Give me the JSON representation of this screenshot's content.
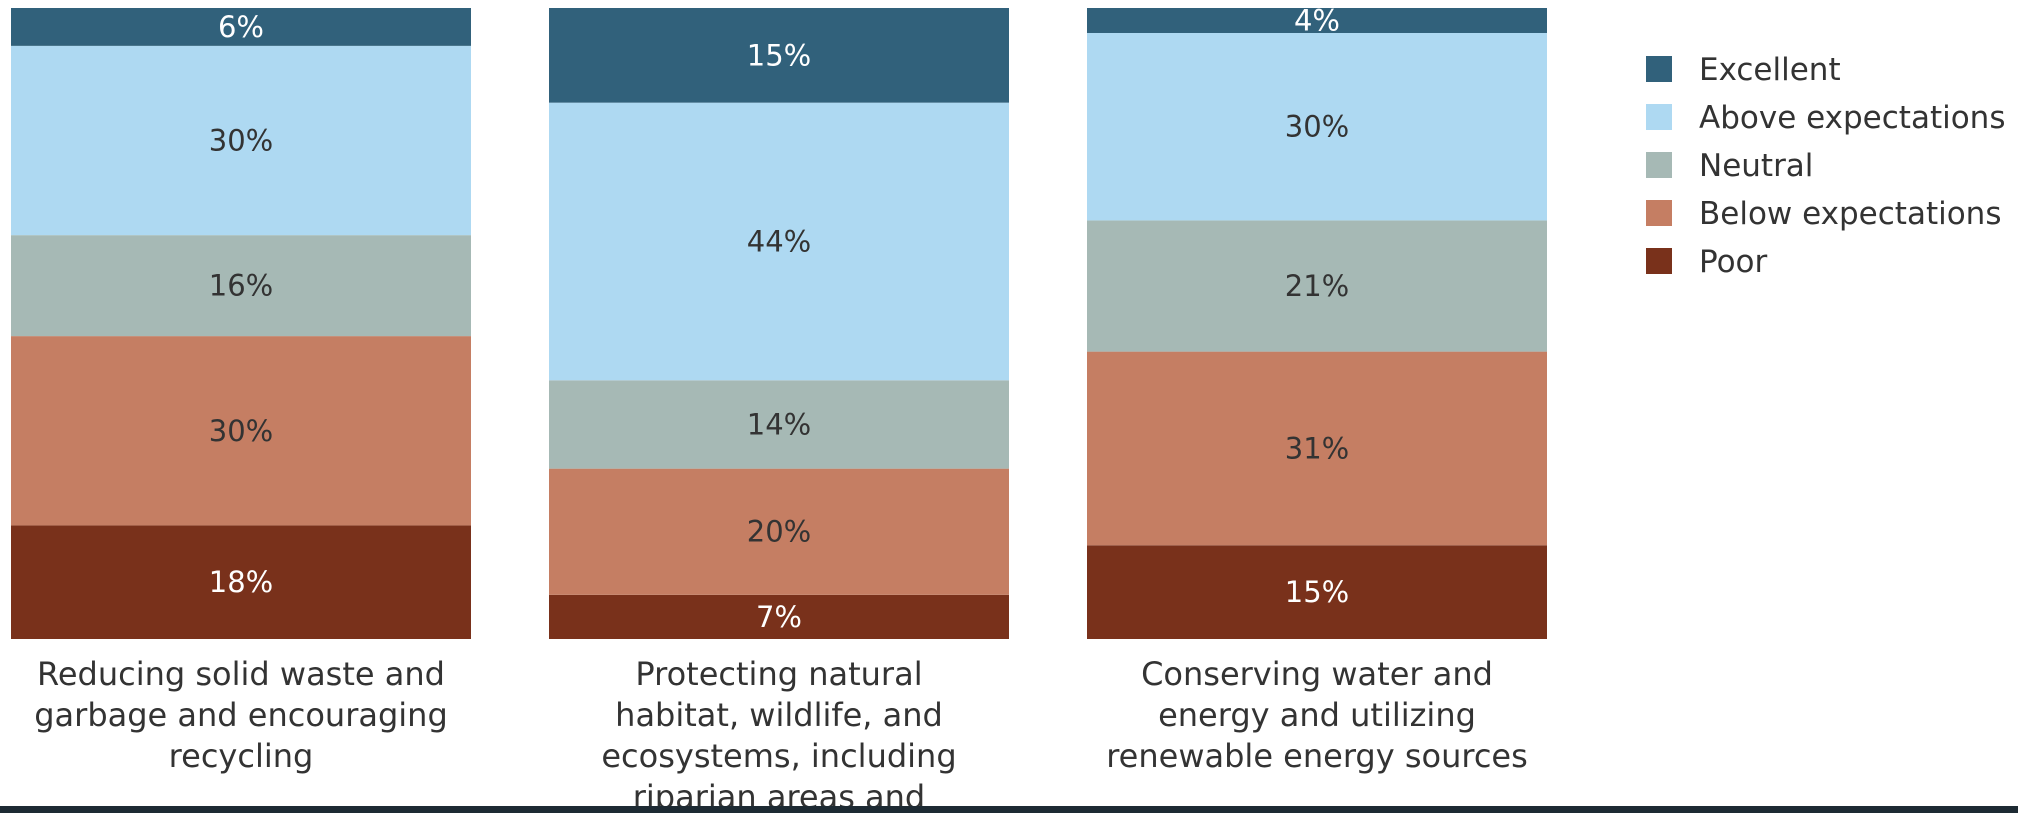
{
  "chart_data": {
    "type": "bar",
    "stacked": true,
    "orientation": "vertical",
    "categories": [
      "Reducing solid waste and garbage and encouraging recycling",
      "Protecting natural habitat, wildlife, and ecosystems, including riparian areas and",
      "Conserving water and energy and utilizing renewable energy sources"
    ],
    "category_lines": [
      [
        "Reducing solid waste and",
        "garbage and encouraging",
        "recycling"
      ],
      [
        "Protecting natural",
        "habitat, wildlife, and",
        "ecosystems, including",
        "riparian areas and"
      ],
      [
        "Conserving water and",
        "energy and utilizing",
        "renewable energy sources"
      ]
    ],
    "series": [
      {
        "name": "Excellent",
        "color": "#31617b",
        "label_color": "#ffffff",
        "values": [
          6,
          15,
          4
        ]
      },
      {
        "name": "Above expectations",
        "color": "#aed9f2",
        "label_color": "#333333",
        "values": [
          30,
          44,
          30
        ]
      },
      {
        "name": "Neutral",
        "color": "#a6b9b5",
        "label_color": "#333333",
        "values": [
          16,
          14,
          21
        ]
      },
      {
        "name": "Below expectations",
        "color": "#c57e63",
        "label_color": "#333333",
        "values": [
          30,
          20,
          31
        ]
      },
      {
        "name": "Poor",
        "color": "#79311b",
        "label_color": "#ffffff",
        "values": [
          18,
          7,
          15
        ]
      }
    ],
    "stack_order_bottom_to_top": [
      "Poor",
      "Below expectations",
      "Neutral",
      "Above expectations",
      "Excellent"
    ],
    "value_suffix": "%",
    "legend_position": "right",
    "grid": false
  }
}
